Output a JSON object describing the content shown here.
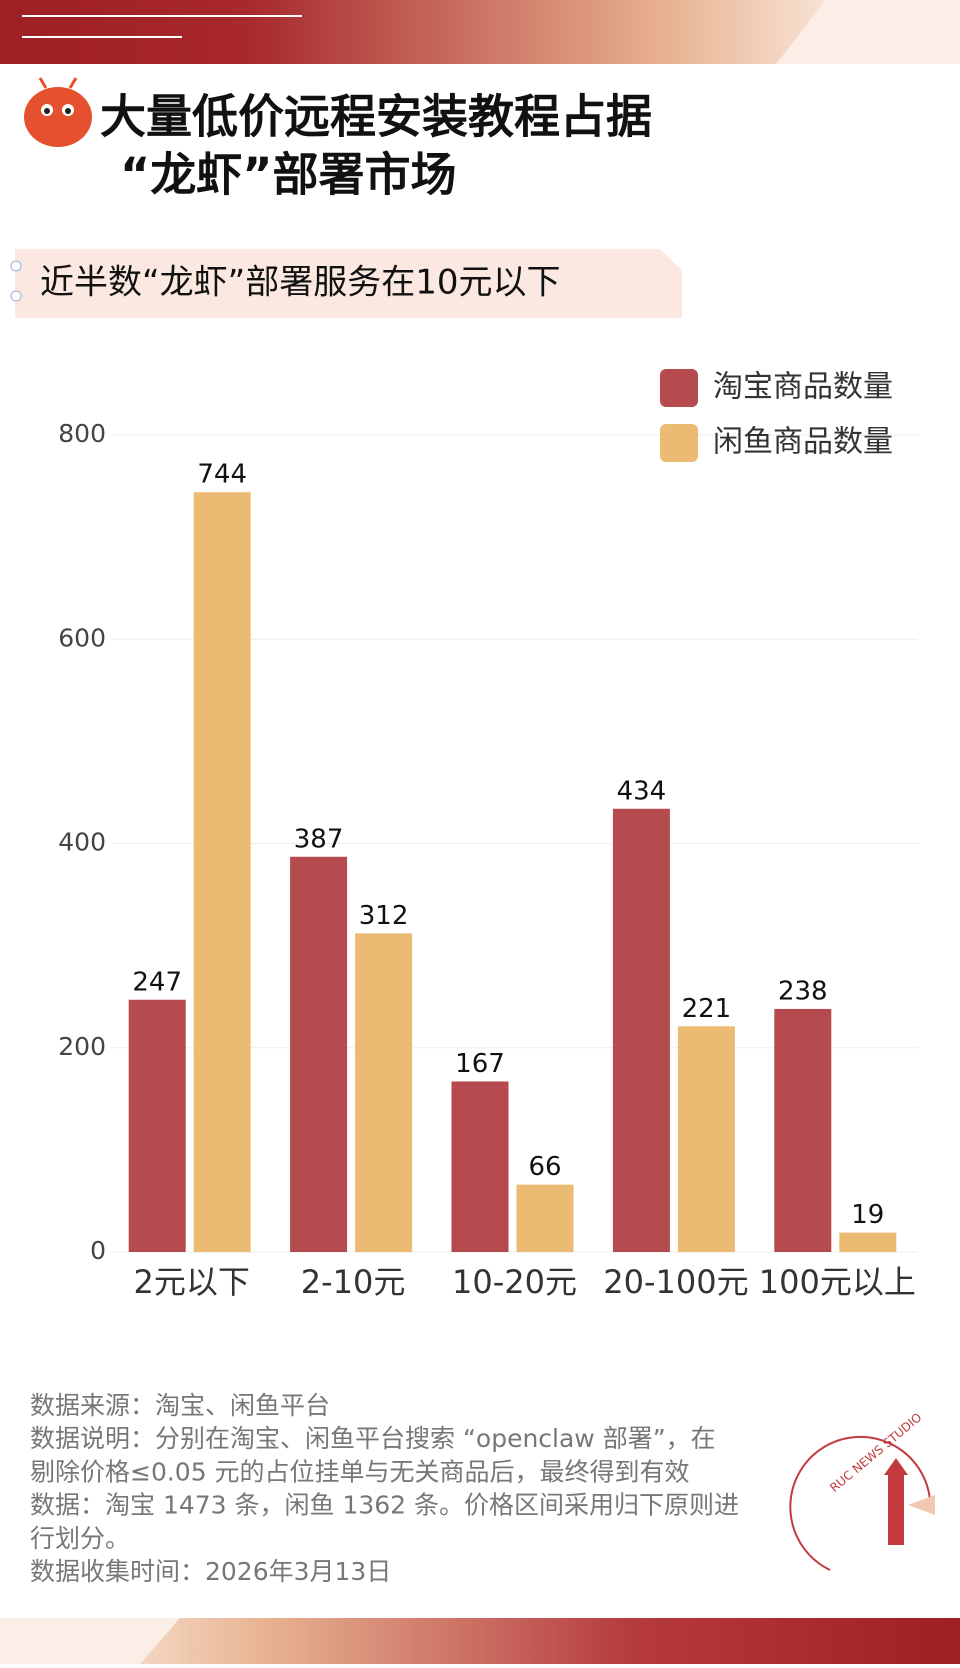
{
  "header": {
    "title_lines": [
      "大量低价远程安装教程占据",
      "“龙虾”部署市场"
    ],
    "subtitle": "近半数“龙虾”部署服务在10元以下"
  },
  "chart_data": {
    "type": "bar",
    "categories": [
      "2元以下",
      "2-10元",
      "10-20元",
      "20-100元",
      "100元以上"
    ],
    "series": [
      {
        "name": "淘宝商品数量",
        "color": "#b54a4f",
        "values": [
          247,
          387,
          167,
          434,
          238
        ]
      },
      {
        "name": "闲鱼商品数量",
        "color": "#ebbb74",
        "values": [
          744,
          312,
          66,
          221,
          19
        ]
      }
    ],
    "ylim": [
      0,
      800
    ],
    "yticks": [
      0,
      200,
      400,
      600,
      800
    ],
    "grid": true,
    "legend": "top-right"
  },
  "footer": {
    "notes": [
      "数据来源：淘宝、闲鱼平台",
      "数据说明：分别在淘宝、闲鱼平台搜索 “openclaw 部署”，在",
      "剔除价格≤0.05 元的占位挂单与无关商品后，最终得到有效",
      "数据：淘宝 1473 条，闲鱼 1362 条。价格区间采用归下原则进",
      "行划分。",
      "数据收集时间：2026年3月13日"
    ],
    "brand": "RUC NEWS STUDIO"
  }
}
